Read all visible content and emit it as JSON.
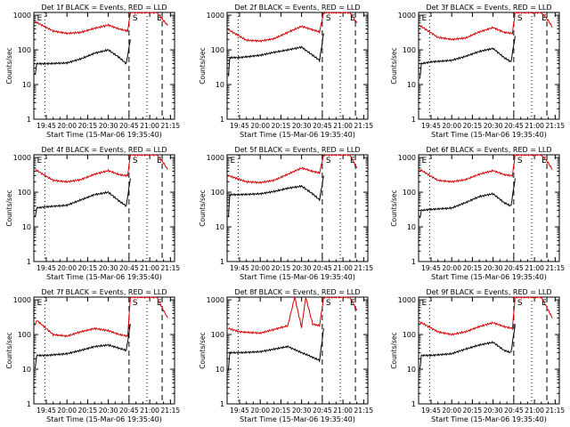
{
  "figure": {
    "colors": {
      "events": "#000000",
      "lld": "#d40000",
      "axes": "#000000"
    }
  },
  "chart_data": [
    {
      "type": "line",
      "panel": 1,
      "title": "Det 1f BLACK = Events, RED = LLD",
      "xlabel": "Start Time (15-Mar-06 19:35:40)",
      "ylabel": "Counts/sec",
      "yscale": "log",
      "ylim": [
        1,
        1200
      ],
      "x_ticks": [
        "19:45",
        "20:00",
        "20:15",
        "20:30",
        "20:45",
        "21:00",
        "21:15"
      ],
      "y_ticks": [
        "1",
        "10",
        "100",
        "1000"
      ],
      "markers": [
        {
          "label": "E",
          "pos": "start"
        },
        {
          "label": "S",
          "pos": "saa_start"
        },
        {
          "label": "E",
          "pos": "saa_end"
        }
      ],
      "series": [
        {
          "name": "LLD",
          "color": "red",
          "x": [
            "19:37",
            "19:50",
            "20:00",
            "20:10",
            "20:20",
            "20:30",
            "20:38",
            "20:44",
            "20:46",
            "20:50",
            "20:55",
            "21:05",
            "21:10",
            "21:13"
          ],
          "y": [
            650,
            350,
            300,
            320,
            420,
            520,
            400,
            350,
            1200,
            1200,
            1200,
            1200,
            700,
            500
          ]
        },
        {
          "name": "Events",
          "color": "black",
          "x": [
            "19:37",
            "19:38",
            "19:45",
            "20:00",
            "20:10",
            "20:20",
            "20:30",
            "20:38",
            "20:43",
            "20:46"
          ],
          "y": [
            18,
            40,
            40,
            42,
            55,
            80,
            100,
            60,
            40,
            200
          ]
        }
      ]
    },
    {
      "type": "line",
      "panel": 2,
      "title": "Det 2f BLACK = Events, RED = LLD",
      "xlabel": "Start Time (15-Mar-06 19:35:40)",
      "ylabel": "Counts/sec",
      "yscale": "log",
      "ylim": [
        1,
        1200
      ],
      "x_ticks": [
        "19:45",
        "20:00",
        "20:15",
        "20:30",
        "20:45",
        "21:00",
        "21:15"
      ],
      "y_ticks": [
        "1",
        "10",
        "100",
        "1000"
      ],
      "markers": [
        {
          "label": "S",
          "pos": "saa_start"
        },
        {
          "label": "E",
          "pos": "saa_end"
        }
      ],
      "series": [
        {
          "name": "LLD",
          "color": "red",
          "x": [
            "19:37",
            "19:50",
            "20:00",
            "20:10",
            "20:20",
            "20:30",
            "20:38",
            "20:43",
            "20:46",
            "20:50",
            "20:55",
            "21:05",
            "21:10"
          ],
          "y": [
            380,
            190,
            180,
            210,
            320,
            480,
            380,
            330,
            1200,
            1200,
            1200,
            1200,
            600
          ]
        },
        {
          "name": "Events",
          "color": "black",
          "x": [
            "19:37",
            "19:38",
            "19:45",
            "20:00",
            "20:10",
            "20:20",
            "20:30",
            "20:38",
            "20:43",
            "20:46"
          ],
          "y": [
            18,
            60,
            60,
            70,
            85,
            100,
            120,
            70,
            50,
            300
          ]
        }
      ]
    },
    {
      "type": "line",
      "panel": 3,
      "title": "Det 3f BLACK = Events, RED = LLD",
      "xlabel": "Start Time (15-Mar-06 19:35:40)",
      "ylabel": "Counts/sec",
      "yscale": "log",
      "ylim": [
        1,
        1200
      ],
      "x_ticks": [
        "19:45",
        "20:00",
        "20:15",
        "20:30",
        "20:45",
        "21:00",
        "21:15"
      ],
      "y_ticks": [
        "1",
        "10",
        "100",
        "1000"
      ],
      "markers": [
        {
          "label": "E",
          "pos": "start"
        },
        {
          "label": "S",
          "pos": "saa_start"
        },
        {
          "label": "E",
          "pos": "saa_end"
        }
      ],
      "series": [
        {
          "name": "LLD",
          "color": "red",
          "x": [
            "19:37",
            "19:50",
            "20:00",
            "20:10",
            "20:20",
            "20:30",
            "20:38",
            "20:44",
            "20:46",
            "20:50",
            "20:55",
            "21:05",
            "21:10",
            "21:13"
          ],
          "y": [
            500,
            230,
            200,
            220,
            330,
            440,
            320,
            300,
            1200,
            1200,
            1200,
            1200,
            700,
            450
          ]
        },
        {
          "name": "Events",
          "color": "black",
          "x": [
            "19:37",
            "19:38",
            "19:45",
            "20:00",
            "20:10",
            "20:20",
            "20:30",
            "20:38",
            "20:43",
            "20:46"
          ],
          "y": [
            15,
            40,
            45,
            50,
            65,
            90,
            110,
            60,
            45,
            250
          ]
        }
      ]
    },
    {
      "type": "line",
      "panel": 4,
      "title": "Det 4f BLACK = Events, RED = LLD",
      "xlabel": "Start Time (15-Mar-06 19:35:40)",
      "ylabel": "Counts/sec",
      "yscale": "log",
      "ylim": [
        1,
        1200
      ],
      "x_ticks": [
        "19:45",
        "20:00",
        "20:15",
        "20:30",
        "20:45",
        "21:00",
        "21:15"
      ],
      "y_ticks": [
        "1",
        "10",
        "100",
        "1000"
      ],
      "markers": [
        {
          "label": "E",
          "pos": "start"
        },
        {
          "label": "S",
          "pos": "saa_start"
        },
        {
          "label": "E",
          "pos": "saa_end"
        }
      ],
      "series": [
        {
          "name": "LLD",
          "color": "red",
          "x": [
            "19:37",
            "19:50",
            "20:00",
            "20:10",
            "20:20",
            "20:30",
            "20:38",
            "20:44",
            "20:46",
            "20:50",
            "20:55",
            "21:05",
            "21:10",
            "21:13"
          ],
          "y": [
            450,
            220,
            200,
            230,
            330,
            420,
            320,
            300,
            1200,
            1200,
            1200,
            1200,
            700,
            450
          ]
        },
        {
          "name": "Events",
          "color": "black",
          "x": [
            "19:37",
            "19:38",
            "19:45",
            "20:00",
            "20:10",
            "20:20",
            "20:30",
            "20:38",
            "20:43",
            "20:46"
          ],
          "y": [
            18,
            35,
            38,
            42,
            60,
            85,
            100,
            55,
            40,
            250
          ]
        }
      ]
    },
    {
      "type": "line",
      "panel": 5,
      "title": "Det 5f BLACK = Events, RED = LLD",
      "xlabel": "Start Time (15-Mar-06 19:35:40)",
      "ylabel": "Counts/sec",
      "yscale": "log",
      "ylim": [
        1,
        1200
      ],
      "x_ticks": [
        "19:45",
        "20:00",
        "20:15",
        "20:30",
        "20:45",
        "21:00",
        "21:15"
      ],
      "y_ticks": [
        "1",
        "10",
        "100",
        "1000"
      ],
      "markers": [
        {
          "label": "E",
          "pos": "start"
        },
        {
          "label": "S",
          "pos": "saa_start"
        },
        {
          "label": "E",
          "pos": "saa_end"
        }
      ],
      "series": [
        {
          "name": "LLD",
          "color": "red",
          "x": [
            "19:37",
            "19:50",
            "20:00",
            "20:10",
            "20:20",
            "20:30",
            "20:38",
            "20:43",
            "20:46",
            "20:50",
            "20:55",
            "21:05",
            "21:10"
          ],
          "y": [
            300,
            200,
            190,
            220,
            330,
            500,
            400,
            360,
            1200,
            1200,
            1200,
            1200,
            500
          ]
        },
        {
          "name": "Events",
          "color": "black",
          "x": [
            "19:37",
            "19:38",
            "19:45",
            "20:00",
            "20:10",
            "20:20",
            "20:30",
            "20:38",
            "20:43",
            "20:46"
          ],
          "y": [
            20,
            85,
            85,
            90,
            105,
            130,
            150,
            90,
            60,
            300
          ]
        }
      ]
    },
    {
      "type": "line",
      "panel": 6,
      "title": "Det 6f BLACK = Events, RED = LLD",
      "xlabel": "Start Time (15-Mar-06 19:35:40)",
      "ylabel": "Counts/sec",
      "yscale": "log",
      "ylim": [
        1,
        1200
      ],
      "x_ticks": [
        "19:45",
        "20:00",
        "20:15",
        "20:30",
        "20:45",
        "21:00",
        "21:15"
      ],
      "y_ticks": [
        "1",
        "10",
        "100",
        "1000"
      ],
      "markers": [
        {
          "label": "E",
          "pos": "start"
        },
        {
          "label": "S",
          "pos": "saa_start"
        },
        {
          "label": "E",
          "pos": "saa_end"
        }
      ],
      "series": [
        {
          "name": "LLD",
          "color": "red",
          "x": [
            "19:37",
            "19:50",
            "20:00",
            "20:10",
            "20:20",
            "20:30",
            "20:38",
            "20:44",
            "20:46",
            "20:50",
            "20:55",
            "21:05",
            "21:10",
            "21:13"
          ],
          "y": [
            450,
            220,
            200,
            230,
            330,
            420,
            320,
            300,
            1200,
            1200,
            1200,
            1200,
            700,
            450
          ]
        },
        {
          "name": "Events",
          "color": "black",
          "x": [
            "19:37",
            "19:38",
            "19:45",
            "20:00",
            "20:10",
            "20:20",
            "20:30",
            "20:38",
            "20:43",
            "20:46"
          ],
          "y": [
            18,
            30,
            32,
            35,
            50,
            75,
            90,
            50,
            40,
            250
          ]
        }
      ]
    },
    {
      "type": "line",
      "panel": 7,
      "title": "Det 7f BLACK = Events, RED = LLD",
      "xlabel": "Start Time (15-Mar-06 19:35:40)",
      "ylabel": "Counts/sec",
      "yscale": "log",
      "ylim": [
        1,
        1200
      ],
      "x_ticks": [
        "19:45",
        "20:00",
        "20:15",
        "20:30",
        "20:45",
        "21:00",
        "21:15"
      ],
      "y_ticks": [
        "1",
        "10",
        "100",
        "1000"
      ],
      "markers": [
        {
          "label": "E",
          "pos": "start"
        },
        {
          "label": "S",
          "pos": "saa_start"
        },
        {
          "label": "E",
          "pos": "saa_end"
        }
      ],
      "series": [
        {
          "name": "LLD",
          "color": "red",
          "x": [
            "19:37",
            "19:38",
            "19:50",
            "20:00",
            "20:10",
            "20:20",
            "20:30",
            "20:38",
            "20:44",
            "20:46",
            "20:50",
            "20:55",
            "21:05",
            "21:10",
            "21:13"
          ],
          "y": [
            180,
            260,
            100,
            90,
            120,
            150,
            130,
            100,
            90,
            1200,
            1200,
            1200,
            1200,
            500,
            300
          ]
        },
        {
          "name": "Events",
          "color": "black",
          "x": [
            "19:37",
            "19:38",
            "19:45",
            "20:00",
            "20:10",
            "20:20",
            "20:30",
            "20:38",
            "20:43",
            "20:46"
          ],
          "y": [
            10,
            25,
            25,
            28,
            35,
            45,
            50,
            40,
            35,
            200
          ]
        }
      ]
    },
    {
      "type": "line",
      "panel": 8,
      "title": "Det 8f BLACK = Events, RED = LLD",
      "xlabel": "Start Time (15-Mar-06 19:35:40)",
      "ylabel": "Counts/sec",
      "yscale": "log",
      "ylim": [
        1,
        1200
      ],
      "x_ticks": [
        "19:45",
        "20:00",
        "20:15",
        "20:30",
        "20:45",
        "21:00",
        "21:15"
      ],
      "y_ticks": [
        "1",
        "10",
        "100",
        "1000"
      ],
      "markers": [
        {
          "label": "S",
          "pos": "saa_start"
        },
        {
          "label": "E",
          "pos": "saa_end"
        }
      ],
      "series": [
        {
          "name": "LLD",
          "color": "red",
          "x": [
            "19:37",
            "19:45",
            "20:00",
            "20:10",
            "20:20",
            "20:25",
            "20:30",
            "20:33",
            "20:38",
            "20:43",
            "20:46",
            "20:50",
            "20:55",
            "21:05",
            "21:10"
          ],
          "y": [
            150,
            120,
            110,
            140,
            180,
            1200,
            160,
            1200,
            200,
            180,
            1200,
            1200,
            1200,
            1200,
            500
          ]
        },
        {
          "name": "Events",
          "color": "black",
          "x": [
            "19:37",
            "19:38",
            "19:45",
            "20:00",
            "20:10",
            "20:20",
            "20:30",
            "20:35",
            "20:38",
            "20:43",
            "20:46"
          ],
          "y": [
            10,
            30,
            30,
            32,
            38,
            45,
            30,
            25,
            22,
            18,
            150
          ]
        }
      ]
    },
    {
      "type": "line",
      "panel": 9,
      "title": "Det 9f BLACK = Events, RED = LLD",
      "xlabel": "Start Time (15-Mar-06 19:35:40)",
      "ylabel": "Counts/sec",
      "yscale": "log",
      "ylim": [
        1,
        1200
      ],
      "x_ticks": [
        "19:45",
        "20:00",
        "20:15",
        "20:30",
        "20:45",
        "21:00",
        "21:15"
      ],
      "y_ticks": [
        "1",
        "10",
        "100",
        "1000"
      ],
      "markers": [
        {
          "label": "E",
          "pos": "start"
        },
        {
          "label": "S",
          "pos": "saa_start"
        },
        {
          "label": "E",
          "pos": "saa_end"
        }
      ],
      "series": [
        {
          "name": "LLD",
          "color": "red",
          "x": [
            "19:37",
            "19:50",
            "20:00",
            "20:10",
            "20:20",
            "20:30",
            "20:38",
            "20:44",
            "20:46",
            "20:50",
            "20:55",
            "21:05",
            "21:10",
            "21:13"
          ],
          "y": [
            230,
            120,
            100,
            120,
            170,
            220,
            170,
            150,
            1200,
            1200,
            1200,
            1200,
            500,
            300
          ]
        },
        {
          "name": "Events",
          "color": "black",
          "x": [
            "19:37",
            "19:38",
            "19:45",
            "20:00",
            "20:10",
            "20:20",
            "20:30",
            "20:38",
            "20:43",
            "20:46"
          ],
          "y": [
            10,
            25,
            25,
            28,
            38,
            50,
            60,
            35,
            30,
            200
          ]
        }
      ]
    }
  ]
}
